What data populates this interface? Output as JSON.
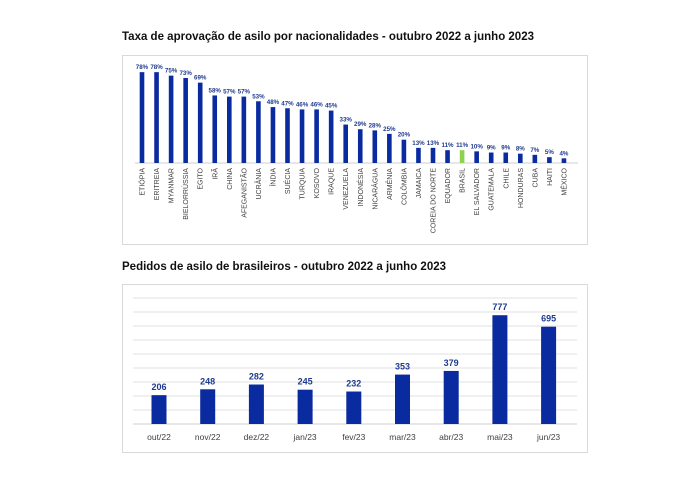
{
  "colors": {
    "bar": "#0a2aa0",
    "highlight_bar": "#8fd14f",
    "highlight_label": "#7fbf3f",
    "label": "#1f3b8f",
    "grid": "#d9d9d9"
  },
  "chart_data": [
    {
      "type": "bar",
      "title": "Taxa de aprovação de asilo por nacionalidades - outubro 2022 a junho 2023",
      "categories": [
        "ETIÓPIA",
        "ERITREIA",
        "MYANMAR",
        "BIELORRÚSSIA",
        "EGITO",
        "IRÃ",
        "CHINA",
        "AFEGANISTÃO",
        "UCRÂNIA",
        "ÍNDIA",
        "SUÉCIA",
        "TURQUIA",
        "KOSOVO",
        "IRAQUE",
        "VENEZUELA",
        "INDONÉSIA",
        "NICARÁGUA",
        "ARMÊNIA",
        "COLÔMBIA",
        "JAMAICA",
        "COREIA DO NORTE",
        "EQUADOR",
        "BRASIL",
        "EL SALVADOR",
        "GUATEMALA",
        "CHILE",
        "HONDURAS",
        "CUBA",
        "HAITI",
        "MÉXICO"
      ],
      "values": [
        78,
        78,
        75,
        73,
        69,
        58,
        57,
        57,
        53,
        48,
        47,
        46,
        46,
        45,
        33,
        29,
        28,
        25,
        20,
        13,
        13,
        11,
        11,
        10,
        9,
        9,
        8,
        7,
        5,
        4
      ],
      "value_labels": [
        "78%",
        "78%",
        "75%",
        "73%",
        "69%",
        "58%",
        "57%",
        "57%",
        "53%",
        "48%",
        "47%",
        "46%",
        "46%",
        "45%",
        "33%",
        "29%",
        "28%",
        "25%",
        "20%",
        "13%",
        "13%",
        "11%",
        "11%",
        "10%",
        "9%",
        "9%",
        "8%",
        "7%",
        "5%",
        "4%"
      ],
      "highlight_index": 22,
      "ylim": [
        0,
        85
      ],
      "grid": false
    },
    {
      "type": "bar",
      "title": "Pedidos de asilo de brasileiros - outubro 2022 a junho 2023",
      "categories": [
        "out/22",
        "nov/22",
        "dez/22",
        "jan/23",
        "fev/23",
        "mar/23",
        "abr/23",
        "mai/23",
        "jun/23"
      ],
      "values": [
        206,
        248,
        282,
        245,
        232,
        353,
        379,
        777,
        695
      ],
      "value_labels": [
        "206",
        "248",
        "282",
        "245",
        "232",
        "353",
        "379",
        "777",
        "695"
      ],
      "ylim": [
        0,
        900
      ],
      "grid": true
    }
  ]
}
